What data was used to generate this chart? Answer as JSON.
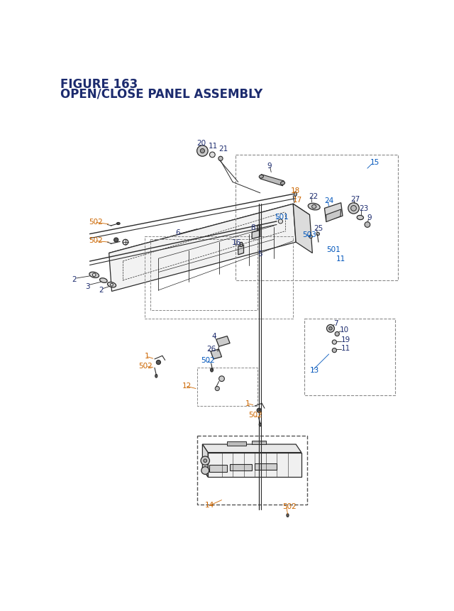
{
  "title_line1": "FIGURE 163",
  "title_line2": "OPEN/CLOSE PANEL ASSEMBLY",
  "bg_color": "#ffffff",
  "title_color": "#1c2b6e",
  "dc": "#2a2a2a",
  "bl": "#1c2b6e",
  "or_": "#cc6600",
  "bu": "#0055bb",
  "fig_width": 6.4,
  "fig_height": 8.62,
  "dpi": 100
}
